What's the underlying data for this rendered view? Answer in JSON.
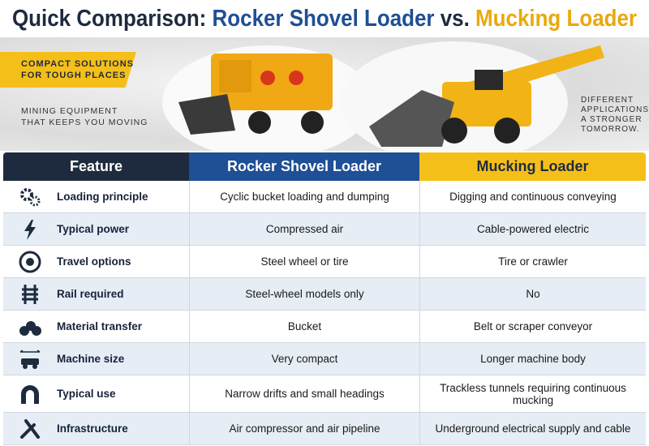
{
  "header": {
    "title": {
      "lead": "Quick Comparison:",
      "left": "Rocker Shovel Loader",
      "joiner": "vs.",
      "right": "Mucking Loader"
    },
    "left_tagline": [
      "COMPACT SOLUTIONS",
      "FOR TOUGH PLACES"
    ],
    "left_subtitle": [
      "MINING EQUIPMENT",
      "THAT KEEPS YOU MOVING"
    ],
    "right_tagline": [
      "DIFFERENT",
      "APPLICATIONS.",
      "A STRONGER",
      "TOMORROW."
    ]
  },
  "table": {
    "columns": [
      "Feature",
      "Rocker Shovel Loader",
      "Mucking Loader"
    ],
    "rows": [
      [
        "Loading principle",
        "Cyclic bucket loading and dumping",
        "Digging and continuous conveying"
      ],
      [
        "Typical power",
        "Compressed air",
        "Cable-powered electric"
      ],
      [
        "Travel options",
        "Steel wheel or tire",
        "Tire or crawler"
      ],
      [
        "Rail required",
        "Steel-wheel models only",
        "No"
      ],
      [
        "Material transfer",
        "Bucket",
        "Belt or scraper conveyor"
      ],
      [
        "Machine size",
        "Very compact",
        "Longer machine body"
      ],
      [
        "Typical use",
        "Narrow drifts and small headings",
        "Trackless tunnels requiring continuous mucking"
      ],
      [
        "Infrastructure",
        "Air compressor and air pipeline",
        "Underground electrical supply and cable"
      ]
    ]
  }
}
